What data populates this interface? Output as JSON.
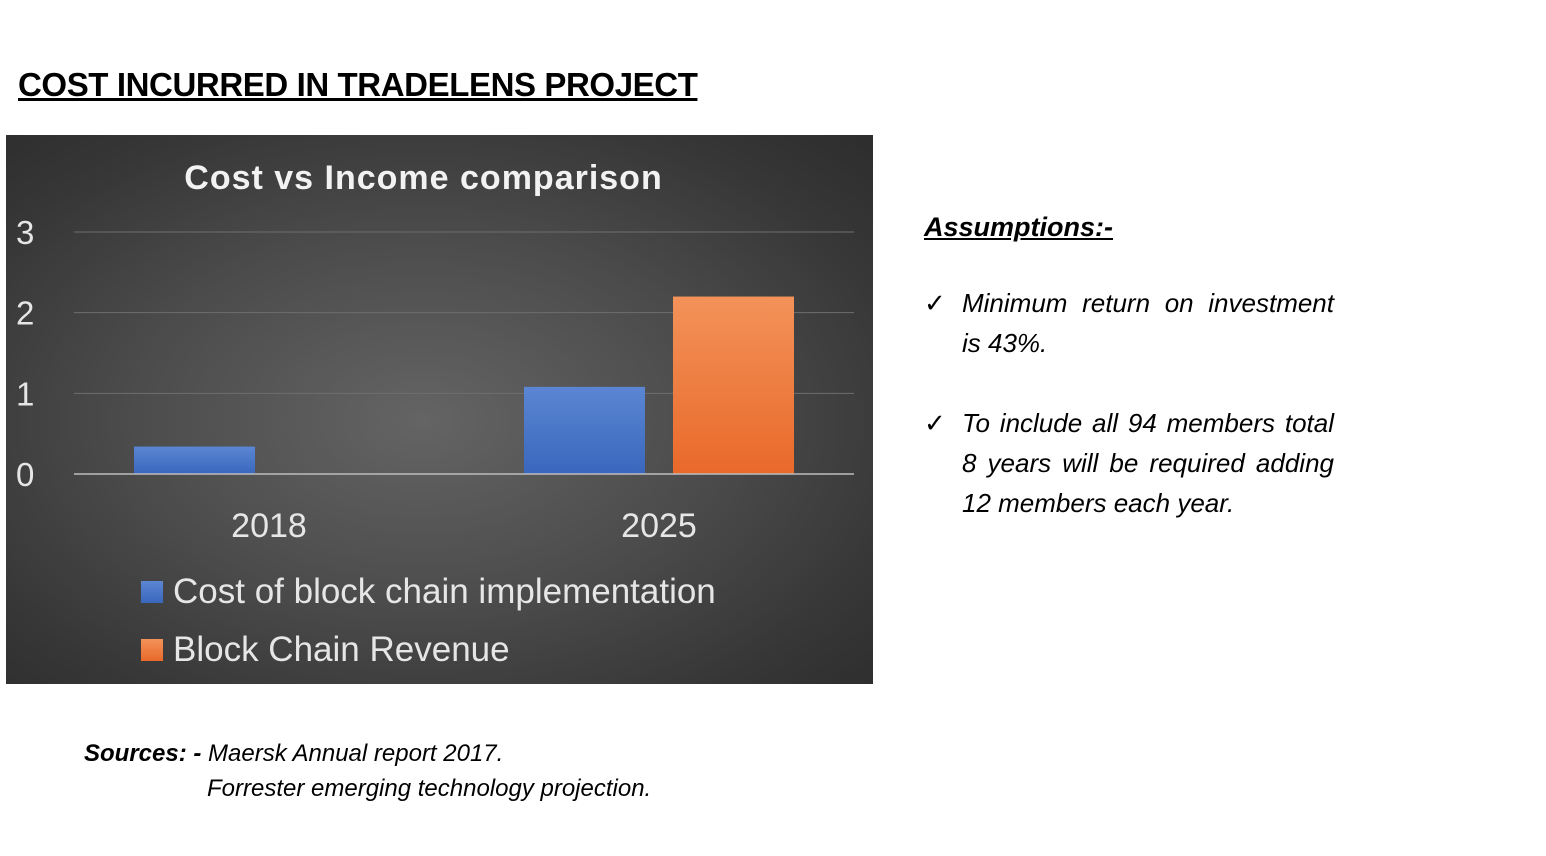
{
  "page": {
    "title": "COST INCURRED IN TRADELENS PROJECT"
  },
  "chart_data": {
    "type": "bar",
    "title": "Cost vs Income comparison",
    "categories": [
      "2018",
      "2025"
    ],
    "series": [
      {
        "name": "Cost of block chain implementation",
        "values": [
          0.34,
          1.08
        ],
        "color": "#4472c4"
      },
      {
        "name": "Block Chain Revenue",
        "values": [
          0,
          2.2
        ],
        "color": "#ed7d31"
      }
    ],
    "yticks": [
      "0",
      "1",
      "2",
      "3"
    ],
    "ylim": [
      0,
      3
    ],
    "xlabel": "",
    "ylabel": "",
    "grid": true,
    "legend_position": "bottom",
    "background": "#4a4a4a"
  },
  "assumptions": {
    "heading": "Assumptions:-",
    "check_symbol": "✓",
    "items": [
      "Minimum return on investment is 43%.",
      "To include all 94 members total 8 years will be required adding 12 members each year."
    ]
  },
  "sources": {
    "label": "Sources: -",
    "line1": "Maersk Annual report 2017.",
    "line2": "Forrester emerging technology projection."
  }
}
